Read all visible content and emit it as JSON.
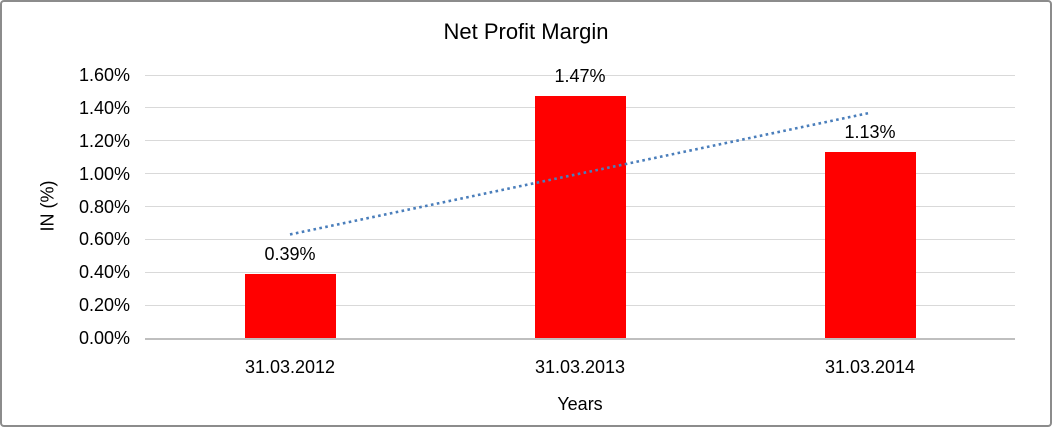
{
  "frame": {
    "background": "#FFFFFF",
    "border_color": "#8C8C8C"
  },
  "chart_data": {
    "type": "bar",
    "title": "Net Profit Margin",
    "xlabel": "Years",
    "ylabel": "IN (%)",
    "categories": [
      "31.03.2012",
      "31.03.2013",
      "31.03.2014"
    ],
    "values": [
      0.39,
      1.47,
      1.13
    ],
    "value_labels": [
      "0.39%",
      "1.47%",
      "1.13%"
    ],
    "ylim": [
      0,
      1.6
    ],
    "ytick_step": 0.2,
    "ytick_labels": [
      "0.00%",
      "0.20%",
      "0.40%",
      "0.60%",
      "0.80%",
      "1.00%",
      "1.20%",
      "1.40%",
      "1.60%"
    ],
    "grid": true,
    "legend": false,
    "bar_color": "#FF0000",
    "gridline_color": "#D9D9D9",
    "axisline_color": "#BFBFBF",
    "text_color": "#000000",
    "trendline": {
      "style": "dotted",
      "color": "#4A7EBB",
      "start_value": 0.63,
      "end_value": 1.37
    }
  }
}
